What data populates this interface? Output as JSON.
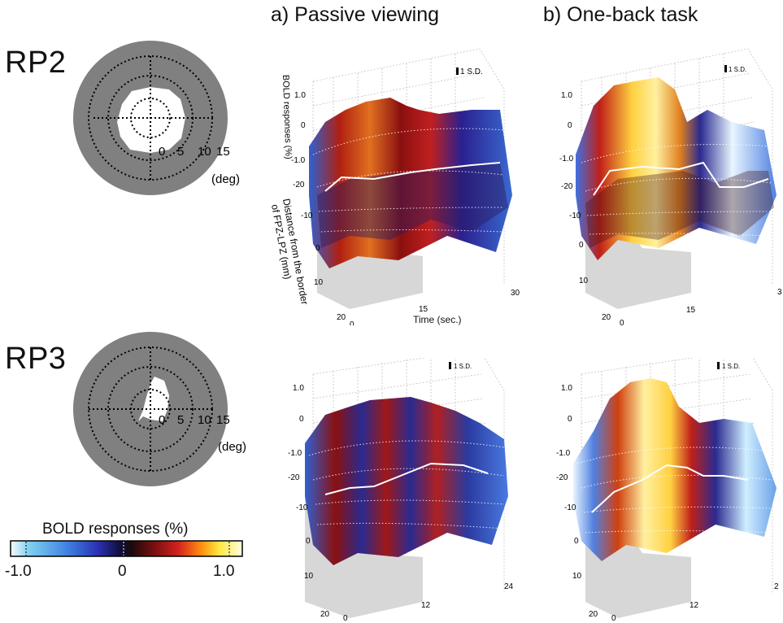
{
  "columns": {
    "a": "a)  Passive viewing",
    "b": "b)  One-back task"
  },
  "rows": [
    {
      "label": "RP2",
      "polar": {
        "rings": [
          "0",
          "5",
          "10",
          "15"
        ],
        "unit": "(deg)"
      }
    },
    {
      "label": "RP3",
      "polar": {
        "rings": [
          "0",
          "5",
          "10",
          "15"
        ],
        "unit": "(deg)"
      }
    }
  ],
  "panels": {
    "scale_bar": "1 S.D.",
    "y_axis_label": "BOLD responses (%)",
    "depth_axis_label_line1": "Distance from the border",
    "depth_axis_label_line2": "of FPZ-LPZ (mm)",
    "time_axis_label": "Time (sec.)",
    "bold_ticks": [
      "1.0",
      "0",
      "-1.0"
    ],
    "depth_ticks": [
      "-20",
      "-10",
      "0",
      "10",
      "20"
    ],
    "rp2_time_ticks": [
      "0",
      "15",
      "30"
    ],
    "rp3_time_ticks": [
      "0",
      "12",
      "24"
    ],
    "rp2_b_right_tick": "3",
    "rp3_b_right_tick": "2"
  },
  "colorbar": {
    "title": "BOLD responses (%)",
    "ticks": [
      "-1.0",
      "0",
      "1.0"
    ],
    "colors": [
      "#f5fbff",
      "#7fd0f0",
      "#3f7fe0",
      "#2a2fb0",
      "#101040",
      "#1a0a0a",
      "#7a0f0f",
      "#d02020",
      "#ff8a10",
      "#ffe840",
      "#fffce0"
    ]
  }
}
